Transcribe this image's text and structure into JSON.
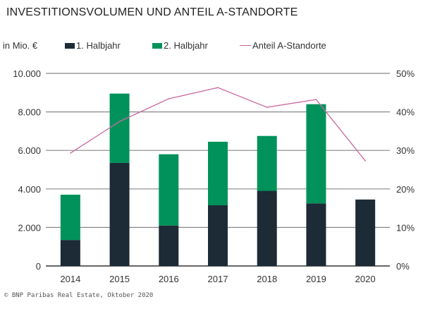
{
  "chart_data": {
    "type": "bar",
    "stacked": true,
    "title": "INVESTITIONSVOLUMEN UND ANTEIL A-STANDORTE",
    "ylabel": "in Mio. €",
    "categories": [
      "2014",
      "2015",
      "2016",
      "2017",
      "2018",
      "2019",
      "2020"
    ],
    "series": [
      {
        "name": "1. Halbjahr",
        "type": "bar",
        "color": "#1c2b36",
        "values": [
          1350,
          5350,
          2100,
          3150,
          3900,
          3250,
          3450
        ]
      },
      {
        "name": "2. Halbjahr",
        "type": "bar",
        "color": "#00925a",
        "values": [
          2350,
          3600,
          3700,
          3300,
          2850,
          5150,
          0
        ]
      },
      {
        "name": "Anteil A-Standorte",
        "type": "line",
        "axis": "right",
        "color": "#c86aa0",
        "values": [
          29.3,
          37.5,
          43.4,
          46.3,
          41.2,
          43.2,
          27.3
        ]
      }
    ],
    "ylim": [
      0,
      10000
    ],
    "yticks": [
      "0",
      "2.000",
      "4.000",
      "6.000",
      "8.000",
      "10.000"
    ],
    "y2lim": [
      0,
      50
    ],
    "y2ticks": [
      "0%",
      "10%",
      "20%",
      "30%",
      "40%",
      "50%"
    ],
    "grid": true,
    "legend": "top"
  },
  "footer": "© BNP Paribas Real Estate, Oktober 2020"
}
